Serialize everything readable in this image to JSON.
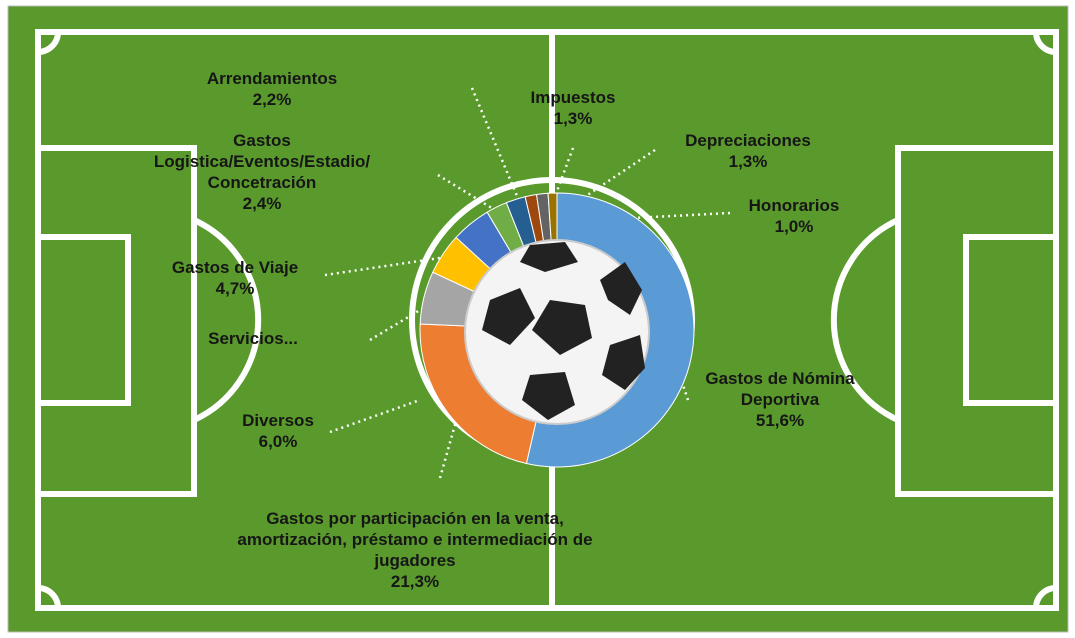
{
  "chart_data": {
    "type": "donut",
    "categories": [
      "Gastos de Nómina Deportiva",
      "Gastos por participación en la venta, amortización, préstamo e intermediación de jugadores",
      "Diversos",
      "Gastos de Viaje",
      "Servicios...",
      "Gastos Logistica/Eventos/Estadio/ Concetración",
      "Arrendamientos",
      "Impuestos",
      "Depreciaciones",
      "Honorarios"
    ],
    "values": [
      51.6,
      21.3,
      6.0,
      4.7,
      4.5,
      2.4,
      2.2,
      1.3,
      1.3,
      1.0
    ],
    "value_labels": [
      "51,6%",
      "21,3%",
      "6,0%",
      "4,7%",
      null,
      "2,4%",
      "2,2%",
      "1,3%",
      "1,3%",
      "1,0%"
    ],
    "colors": [
      "#5b9bd5",
      "#ed7d31",
      "#a5a5a5",
      "#ffc000",
      "#4472c4",
      "#70ad47",
      "#255e91",
      "#9e480e",
      "#636363",
      "#997300"
    ]
  }
}
